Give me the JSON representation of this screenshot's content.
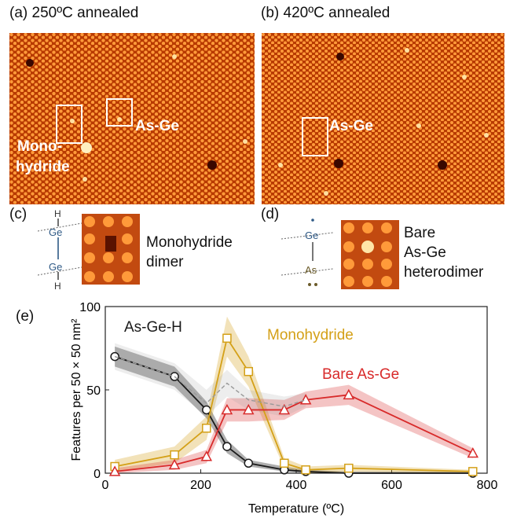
{
  "panels": {
    "a": {
      "label": "(a) 250ºC annealed",
      "box1": "",
      "box2": "As-Ge",
      "side": [
        "Mono-",
        "hydride"
      ]
    },
    "b": {
      "label": "(b) 420ºC annealed",
      "box1": "As-Ge"
    },
    "c": {
      "label": "(c)",
      "top_atom": "H",
      "atom1": "Ge",
      "atom2": "Ge",
      "bottom_atom": "H",
      "caption": [
        "Monohydride",
        "dimer"
      ]
    },
    "d": {
      "label": "(d)",
      "atom1": "Ge",
      "atom2": "As",
      "caption": [
        "Bare",
        "As-Ge",
        "heterodimer"
      ]
    },
    "e": {
      "label": "(e)"
    }
  },
  "colors": {
    "black": "#1a1a1a",
    "gold": "#d4a017",
    "red": "#d82a2a",
    "stm_bg": "#b83a00",
    "stm_spot": "#ffb347"
  },
  "chart_data": {
    "type": "line",
    "xlabel": "Temperature (ºC)",
    "ylabel": "Features per 50 × 50 nm²",
    "xlim": [
      0,
      800
    ],
    "ylim": [
      0,
      100
    ],
    "xticks": [
      0,
      200,
      400,
      600,
      800
    ],
    "yticks": [
      0,
      50,
      100
    ],
    "series": [
      {
        "name": "As-Ge-H",
        "color": "#1a1a1a",
        "marker": "circle",
        "x": [
          20,
          145,
          212,
          255,
          300,
          375,
          420,
          510,
          770
        ],
        "y": [
          70,
          58,
          38,
          16,
          6,
          2,
          1,
          0,
          0
        ],
        "lower": [
          64,
          52,
          33,
          12,
          4,
          1,
          0,
          0,
          0
        ],
        "upper": [
          76,
          64,
          43,
          20,
          8,
          4,
          2,
          1,
          1
        ]
      },
      {
        "name": "Monohydride",
        "color": "#d4a017",
        "marker": "square",
        "x": [
          20,
          145,
          212,
          255,
          300,
          375,
          420,
          510,
          770
        ],
        "y": [
          4,
          11,
          27,
          81,
          61,
          6,
          2,
          3,
          1
        ],
        "lower": [
          1,
          6,
          20,
          70,
          52,
          3,
          0,
          1,
          0
        ],
        "upper": [
          8,
          16,
          34,
          94,
          70,
          9,
          4,
          5,
          2
        ]
      },
      {
        "name": "Bare As-Ge",
        "color": "#d82a2a",
        "marker": "triangle",
        "x": [
          20,
          145,
          212,
          255,
          300,
          375,
          420,
          510,
          770
        ],
        "y": [
          1,
          5,
          10,
          38,
          38,
          38,
          44,
          47,
          12
        ],
        "lower": [
          0,
          2,
          6,
          31,
          31,
          32,
          39,
          41,
          9
        ],
        "upper": [
          3,
          8,
          14,
          45,
          45,
          44,
          49,
          53,
          15
        ]
      },
      {
        "name": "",
        "color": "#999999",
        "marker": "none",
        "dashed": true,
        "x": [
          20,
          145,
          212,
          255,
          300,
          375,
          420
        ],
        "y": [
          70,
          58,
          42,
          54,
          44,
          40,
          44
        ],
        "lower": [
          62,
          50,
          34,
          46,
          38,
          34,
          40
        ],
        "upper": [
          78,
          66,
          50,
          62,
          50,
          46,
          48
        ]
      }
    ]
  }
}
